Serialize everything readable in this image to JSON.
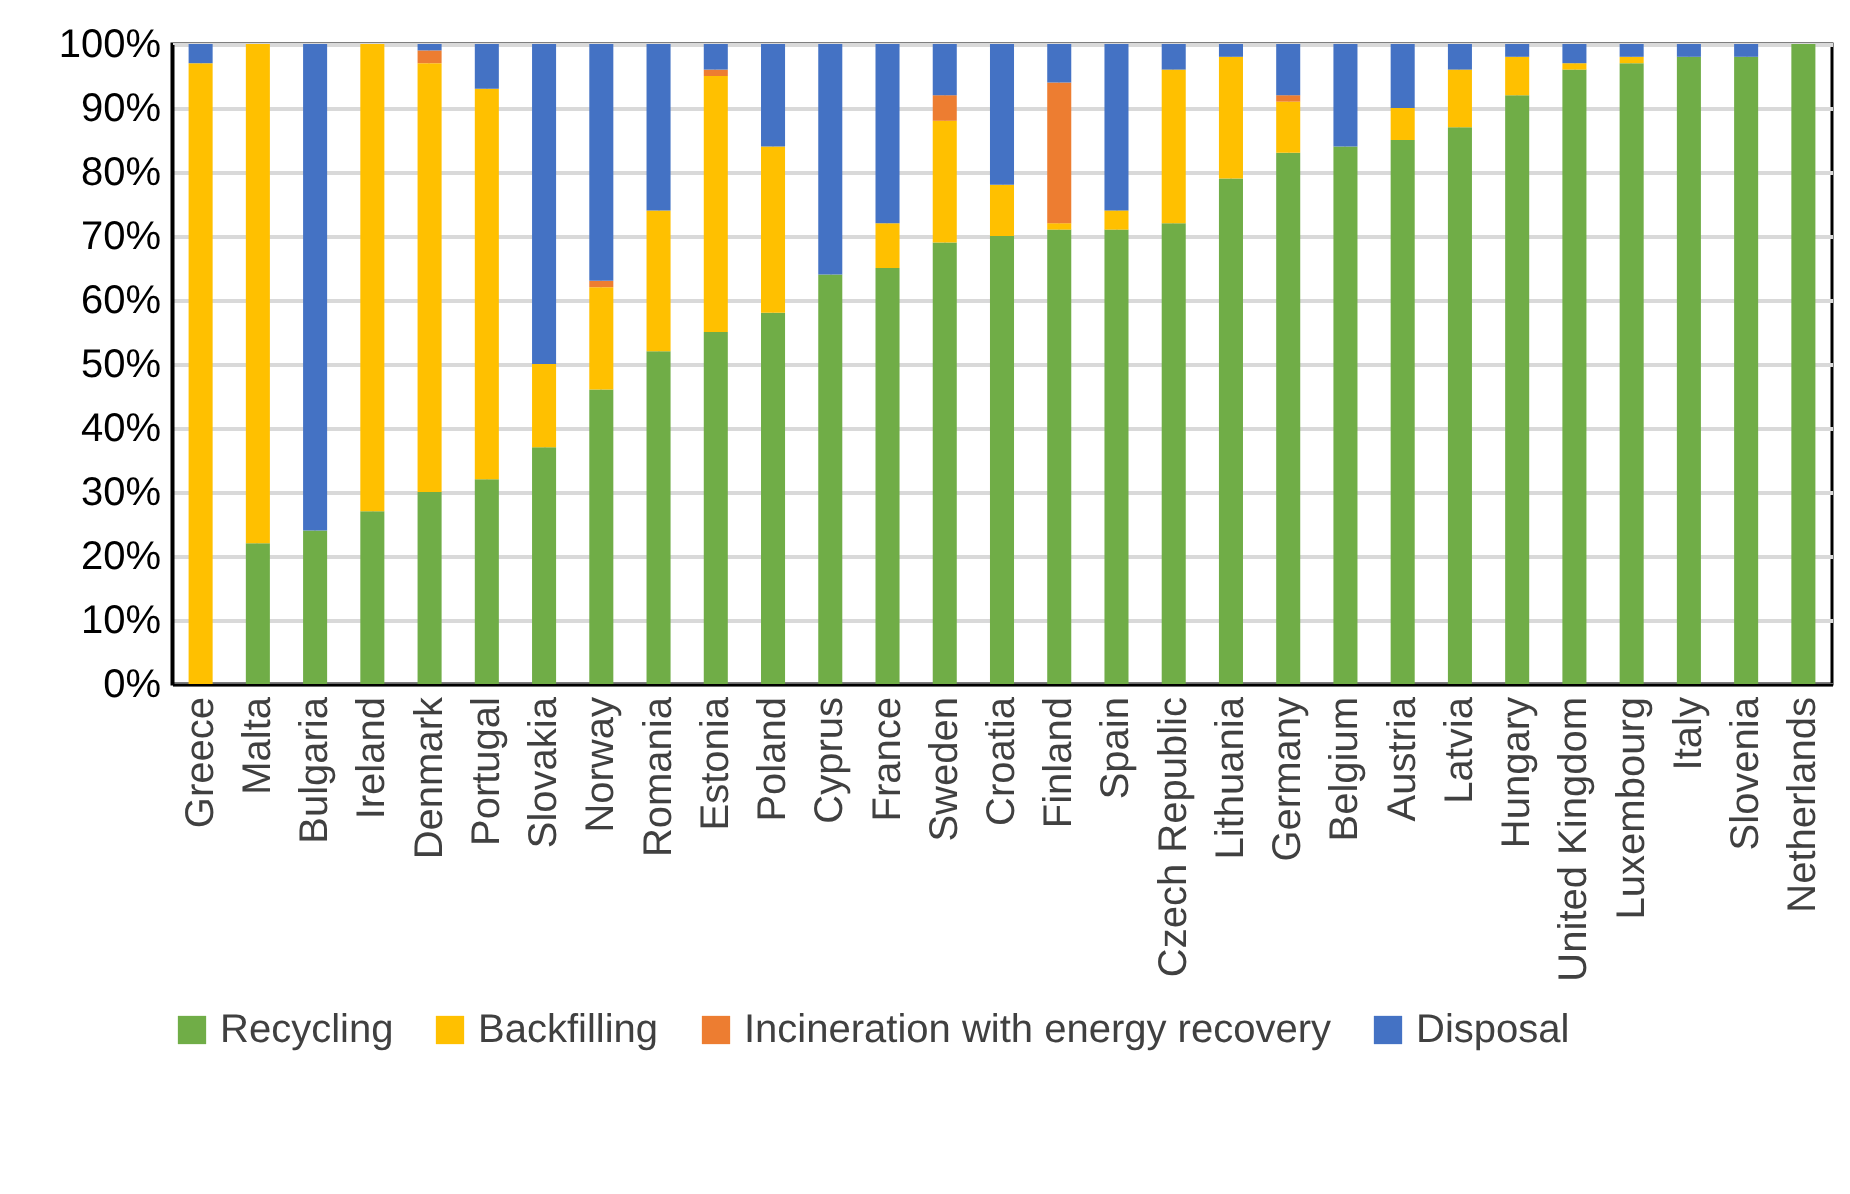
{
  "chart_data": {
    "type": "bar",
    "stacked": true,
    "categories": [
      "Greece",
      "Malta",
      "Bulgaria",
      "Ireland",
      "Denmark",
      "Portugal",
      "Slovakia",
      "Norway",
      "Romania",
      "Estonia",
      "Poland",
      "Cyprus",
      "France",
      "Sweden",
      "Croatia",
      "Finland",
      "Spain",
      "Czech Republic",
      "Lithuania",
      "Germany",
      "Belgium",
      "Austria",
      "Latvia",
      "Hungary",
      "United Kingdom",
      "Luxembourg",
      "Italy",
      "Slovenia",
      "Netherlands"
    ],
    "series": [
      {
        "name": "Recycling",
        "color": "#70ad47",
        "values": [
          0,
          22,
          24,
          27,
          30,
          32,
          37,
          46,
          52,
          55,
          58,
          64,
          65,
          69,
          70,
          71,
          71,
          72,
          79,
          83,
          84,
          85,
          87,
          92,
          96,
          97,
          98,
          98,
          100
        ]
      },
      {
        "name": "Backfilling",
        "color": "#ffc000",
        "values": [
          97,
          78,
          0,
          73,
          67,
          61,
          13,
          16,
          22,
          40,
          26,
          0,
          7,
          19,
          8,
          1,
          3,
          24,
          19,
          8,
          0,
          5,
          9,
          6,
          1,
          1,
          0,
          0,
          0
        ]
      },
      {
        "name": "Incineration with energy recovery",
        "color": "#ed7d31",
        "values": [
          0,
          0,
          0,
          0,
          2,
          0,
          0,
          1,
          0,
          1,
          0,
          0,
          0,
          4,
          0,
          22,
          0,
          0,
          0,
          1,
          0,
          0,
          0,
          0,
          0,
          0,
          0,
          0,
          0
        ]
      },
      {
        "name": "Disposal",
        "color": "#4472c4",
        "values": [
          3,
          0,
          76,
          0,
          1,
          7,
          50,
          37,
          26,
          4,
          16,
          36,
          28,
          8,
          22,
          6,
          26,
          4,
          2,
          8,
          16,
          10,
          4,
          2,
          3,
          2,
          2,
          2,
          0
        ]
      }
    ],
    "ylim": [
      0,
      100
    ],
    "yticks": [
      {
        "value": 0,
        "label": "0%"
      },
      {
        "value": 10,
        "label": "10%"
      },
      {
        "value": 20,
        "label": "20%"
      },
      {
        "value": 30,
        "label": "30%"
      },
      {
        "value": 40,
        "label": "40%"
      },
      {
        "value": 50,
        "label": "50%"
      },
      {
        "value": 60,
        "label": "60%"
      },
      {
        "value": 70,
        "label": "70%"
      },
      {
        "value": 80,
        "label": "80%"
      },
      {
        "value": 90,
        "label": "90%"
      },
      {
        "value": 100,
        "label": "100%"
      }
    ],
    "grid": true,
    "legend": "bottom"
  }
}
